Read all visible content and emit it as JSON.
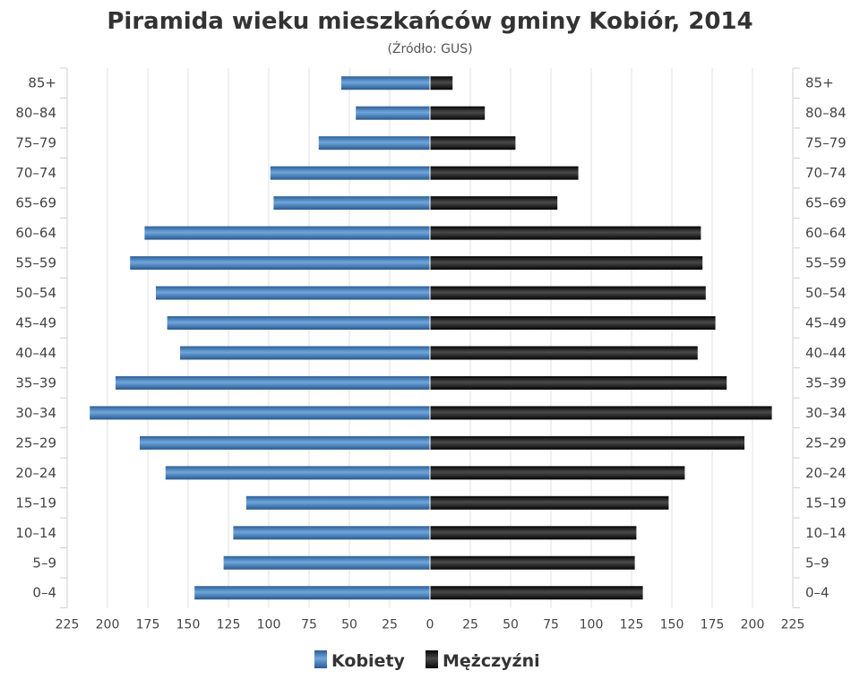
{
  "chart_data": {
    "type": "bar",
    "orientation": "horizontal-population-pyramid",
    "title": "Piramida wieku mieszkańców gminy Kobiór, 2014",
    "subtitle": "(Źródło: GUS)",
    "categories": [
      "85+",
      "80–84",
      "75–79",
      "70–74",
      "65–69",
      "60–64",
      "55–59",
      "50–54",
      "45–49",
      "40–44",
      "35–39",
      "30–34",
      "25–29",
      "20–24",
      "15–19",
      "10–14",
      "5–9",
      "0–4"
    ],
    "series": [
      {
        "name": "Kobiety",
        "color": "#3d7ab9",
        "side": "left",
        "values": [
          55,
          46,
          69,
          99,
          97,
          177,
          186,
          170,
          163,
          155,
          195,
          211,
          180,
          164,
          114,
          122,
          128,
          146
        ]
      },
      {
        "name": "Mężczyźni",
        "color": "#1c1c1c",
        "side": "right",
        "values": [
          14,
          34,
          53,
          92,
          79,
          168,
          169,
          171,
          177,
          166,
          184,
          212,
          195,
          158,
          148,
          128,
          127,
          132
        ]
      }
    ],
    "xlim": [
      -225,
      225
    ],
    "x_ticks": [
      225,
      200,
      175,
      150,
      125,
      100,
      75,
      50,
      25,
      0,
      25,
      50,
      75,
      100,
      125,
      150,
      175,
      200,
      225
    ],
    "grid": true,
    "legend_position": "bottom-center"
  }
}
